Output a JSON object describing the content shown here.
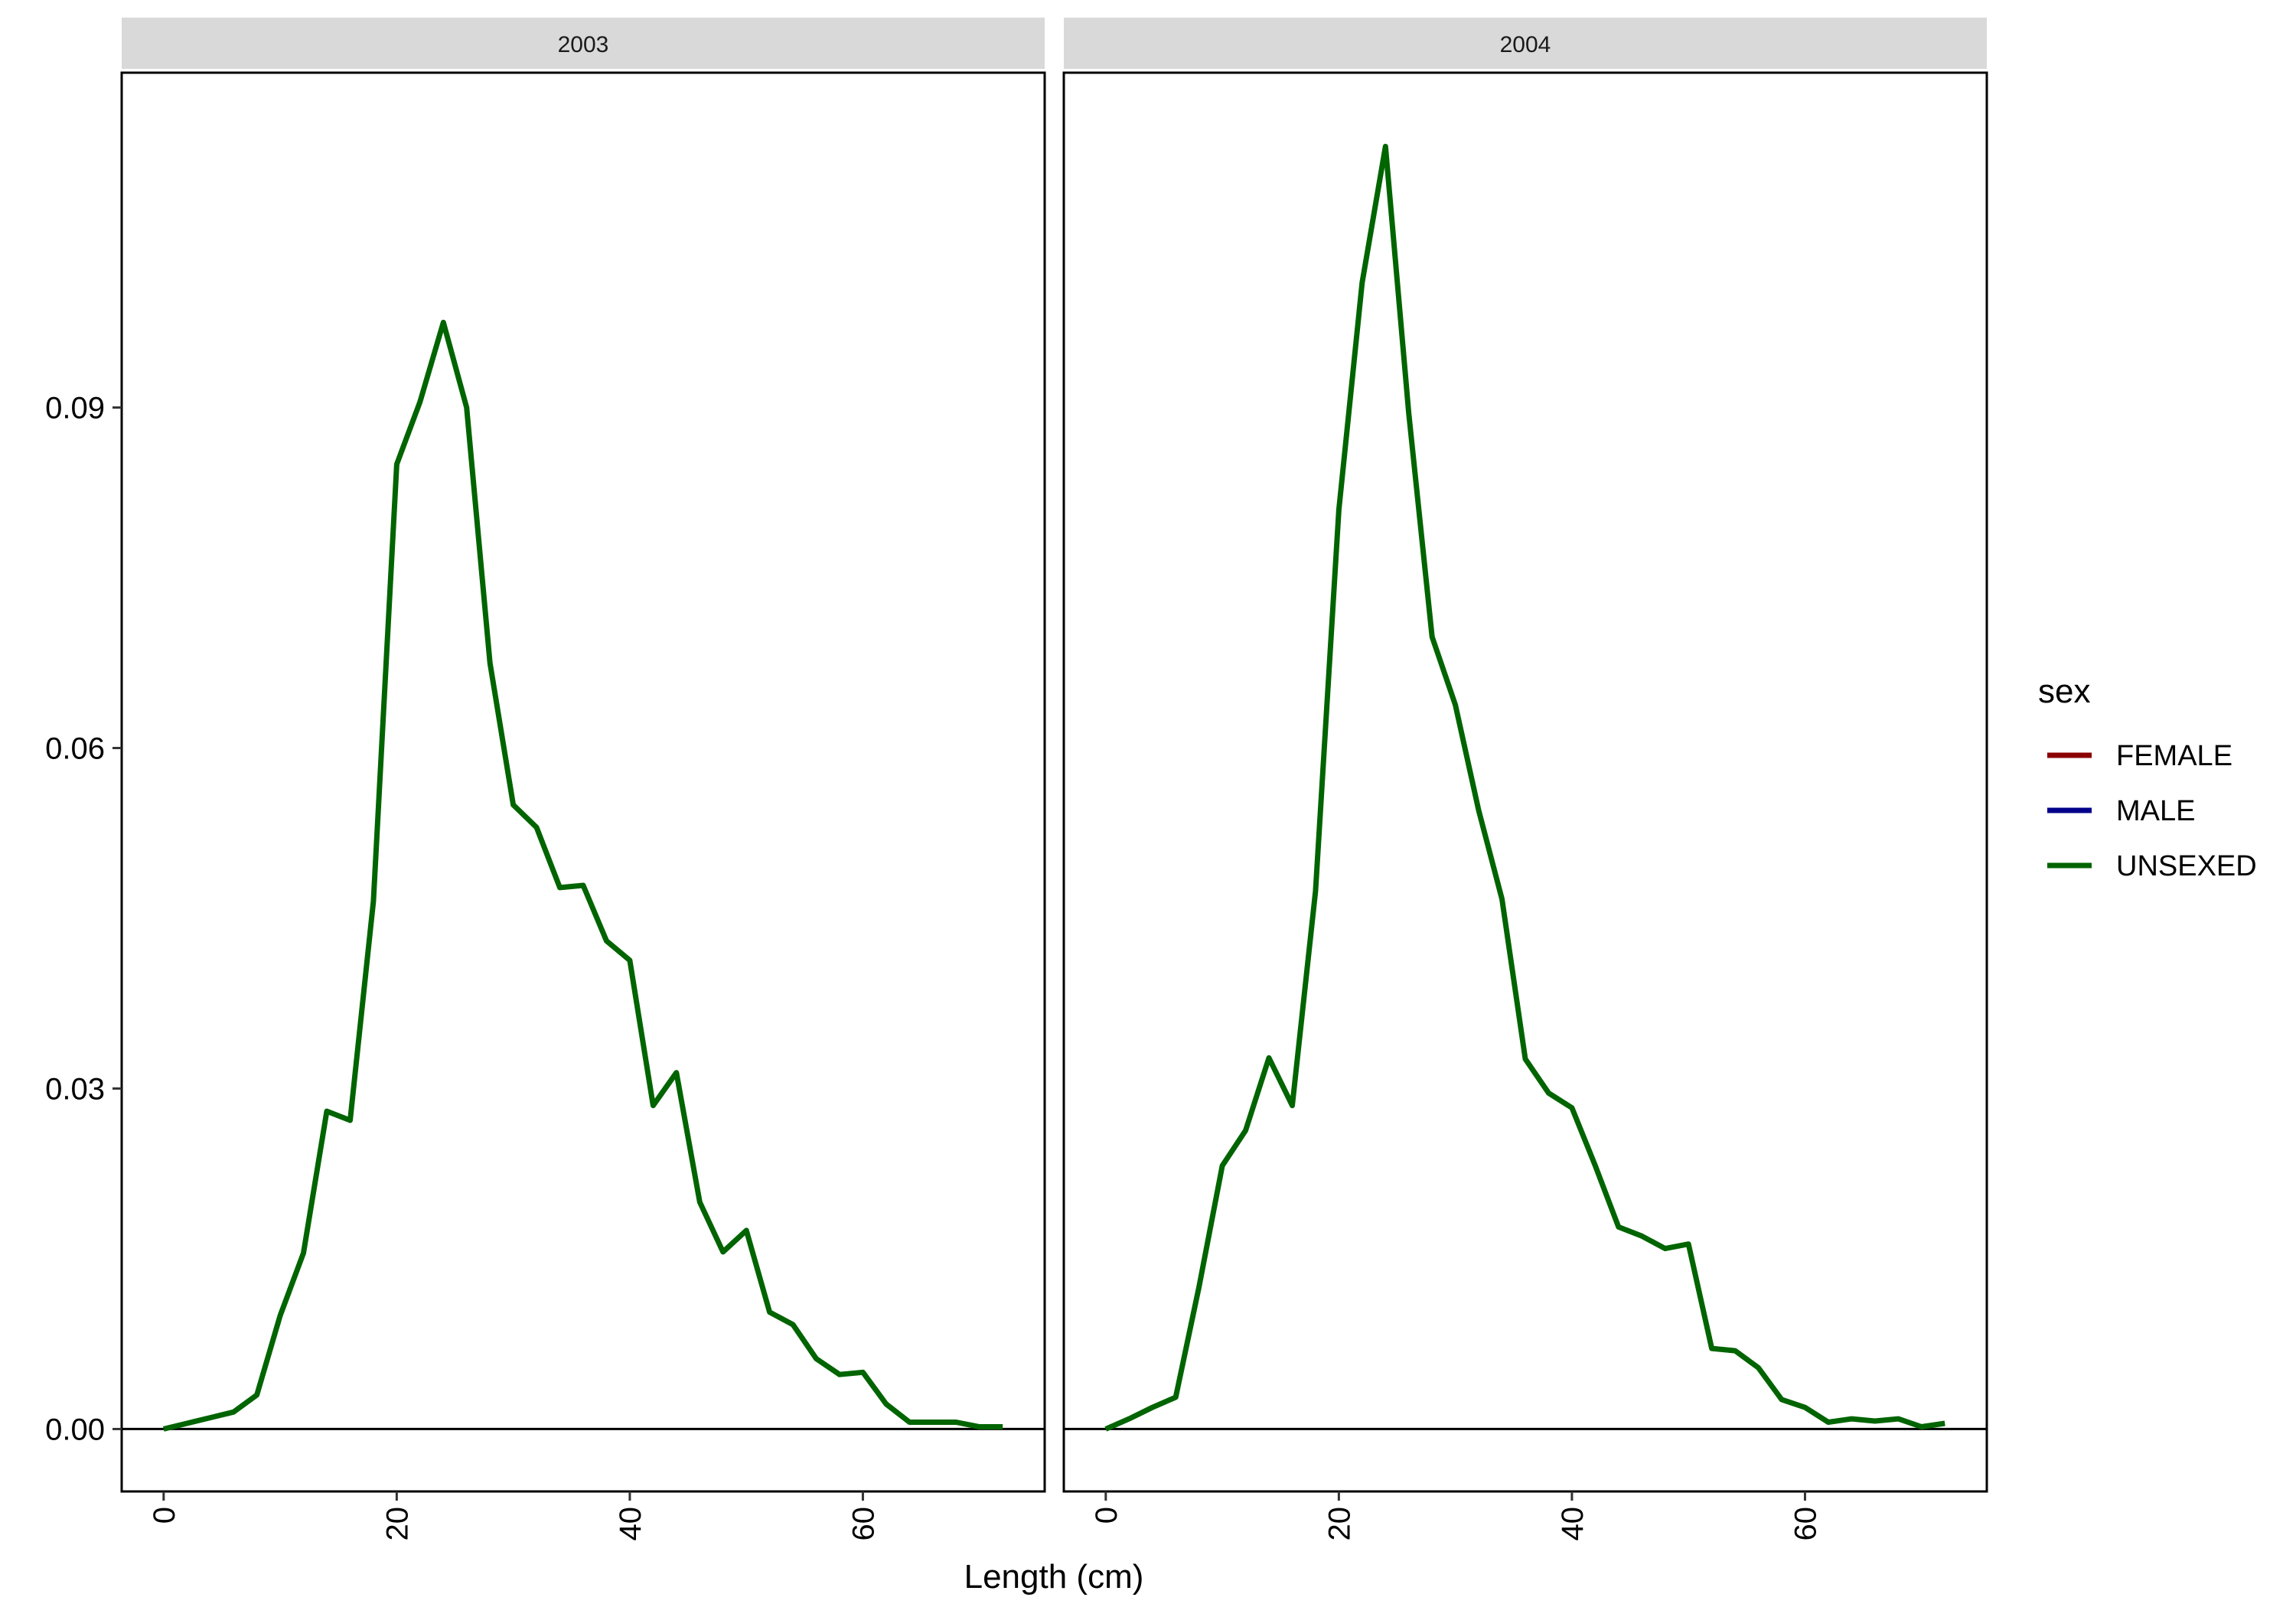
{
  "chart_data": {
    "type": "line",
    "xlabel": "Length (cm)",
    "ylabel": "",
    "xlim": [
      -3.6,
      75.6
    ],
    "ylim": [
      -0.0055,
      0.1195
    ],
    "x_ticks": [
      0,
      20,
      40,
      60
    ],
    "x_tick_labels": [
      "0",
      "20",
      "40",
      "60"
    ],
    "y_ticks": [
      0,
      0.03,
      0.06,
      0.09
    ],
    "y_tick_labels": [
      "0.00",
      "0.03",
      "0.06",
      "0.09"
    ],
    "legend": {
      "title": "sex",
      "placement": "right",
      "entries": [
        {
          "label": "FEMALE",
          "color": "#8B0000"
        },
        {
          "label": "MALE",
          "color": "#00008B"
        },
        {
          "label": "UNSEXED",
          "color": "#006400"
        }
      ]
    },
    "panels": [
      {
        "strip": "2003",
        "series": [
          {
            "sex": "UNSEXED",
            "color": "#006400",
            "x": [
              0,
              2,
              4,
              6,
              8,
              10,
              12,
              14,
              16,
              18,
              20,
              22,
              24,
              26,
              28,
              30,
              32,
              34,
              36,
              38,
              40,
              42,
              44,
              46,
              48,
              50,
              52,
              54,
              56,
              58,
              60,
              62,
              64,
              66,
              68,
              70,
              72
            ],
            "y": [
              0.0,
              0.0005,
              0.001,
              0.0015,
              0.003,
              0.01,
              0.0155,
              0.028,
              0.0272,
              0.0465,
              0.085,
              0.0905,
              0.0975,
              0.09,
              0.0675,
              0.055,
              0.053,
              0.0477,
              0.0479,
              0.043,
              0.0413,
              0.0285,
              0.0314,
              0.02,
              0.0156,
              0.0175,
              0.0103,
              0.0092,
              0.0062,
              0.0048,
              0.005,
              0.0022,
              0.0006,
              0.0006,
              0.0006,
              0.0002,
              0.0002
            ]
          }
        ]
      },
      {
        "strip": "2004",
        "series": [
          {
            "sex": "UNSEXED",
            "color": "#006400",
            "x": [
              0,
              2,
              4,
              6,
              8,
              10,
              12,
              14,
              16,
              18,
              20,
              22,
              24,
              26,
              28,
              30,
              32,
              34,
              36,
              38,
              40,
              42,
              44,
              46,
              48,
              50,
              52,
              54,
              56,
              58,
              60,
              62,
              64,
              66,
              68,
              70,
              72
            ],
            "y": [
              0.0,
              0.0009,
              0.0019,
              0.0028,
              0.0125,
              0.0232,
              0.0263,
              0.0327,
              0.0285,
              0.0474,
              0.081,
              0.101,
              0.113,
              0.0895,
              0.0698,
              0.0638,
              0.0545,
              0.0467,
              0.0326,
              0.0296,
              0.0283,
              0.0232,
              0.0178,
              0.017,
              0.0159,
              0.0163,
              0.0071,
              0.0069,
              0.0054,
              0.0026,
              0.0019,
              0.0006,
              0.0009,
              0.0007,
              0.0009,
              0.0002,
              0.0005
            ]
          }
        ]
      }
    ]
  }
}
